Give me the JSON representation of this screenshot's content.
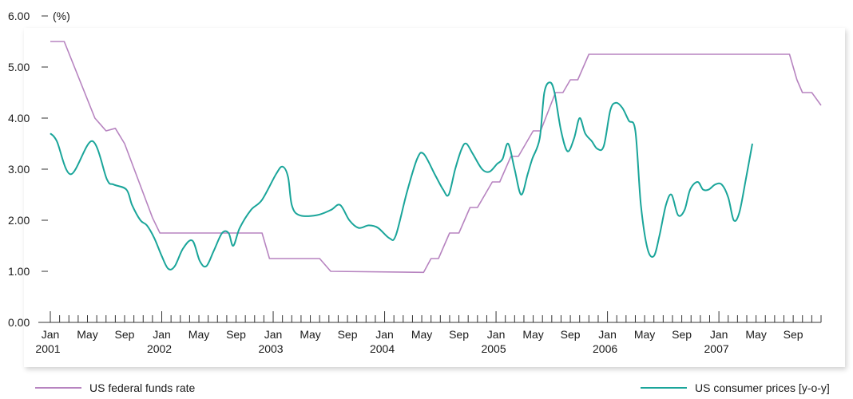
{
  "chart_data": {
    "type": "line",
    "unit_label": "(%)",
    "y_ticks": [
      "0.00",
      "1.00",
      "2.00",
      "3.00",
      "4.00",
      "5.00",
      "6.00"
    ],
    "ylim": [
      0,
      6
    ],
    "x_range": [
      0,
      83
    ],
    "x_tick_labels": [
      {
        "m": 0,
        "month": "Jan",
        "year": "2001"
      },
      {
        "m": 4,
        "month": "May",
        "year": ""
      },
      {
        "m": 8,
        "month": "Sep",
        "year": ""
      },
      {
        "m": 12,
        "month": "Jan",
        "year": "2002"
      },
      {
        "m": 16,
        "month": "May",
        "year": ""
      },
      {
        "m": 20,
        "month": "Sep",
        "year": ""
      },
      {
        "m": 24,
        "month": "Jan",
        "year": "2003"
      },
      {
        "m": 28,
        "month": "May",
        "year": ""
      },
      {
        "m": 32,
        "month": "Sep",
        "year": ""
      },
      {
        "m": 36,
        "month": "Jan",
        "year": "2004"
      },
      {
        "m": 40,
        "month": "May",
        "year": ""
      },
      {
        "m": 44,
        "month": "Sep",
        "year": ""
      },
      {
        "m": 48,
        "month": "Jan",
        "year": "2005"
      },
      {
        "m": 52,
        "month": "May",
        "year": ""
      },
      {
        "m": 56,
        "month": "Sep",
        "year": ""
      },
      {
        "m": 60,
        "month": "Jan",
        "year": "2006"
      },
      {
        "m": 64,
        "month": "May",
        "year": ""
      },
      {
        "m": 68,
        "month": "Sep",
        "year": ""
      },
      {
        "m": 72,
        "month": "Jan",
        "year": "2007"
      },
      {
        "m": 76,
        "month": "May",
        "year": ""
      },
      {
        "m": 80,
        "month": "Sep",
        "year": ""
      }
    ],
    "series": [
      {
        "name": "US federal funds rate",
        "color": "#b784c0",
        "points": [
          [
            0,
            5.5
          ],
          [
            1.5,
            5.5
          ],
          [
            4.8,
            4.0
          ],
          [
            6,
            3.75
          ],
          [
            7,
            3.8
          ],
          [
            8,
            3.5
          ],
          [
            11,
            2.05
          ],
          [
            11.8,
            1.75
          ],
          [
            22,
            1.75
          ],
          [
            22.8,
            1.75
          ],
          [
            23.6,
            1.25
          ],
          [
            29,
            1.25
          ],
          [
            30.2,
            1.0
          ],
          [
            40.2,
            0.98
          ],
          [
            41,
            1.25
          ],
          [
            41.8,
            1.25
          ],
          [
            43,
            1.75
          ],
          [
            44,
            1.75
          ],
          [
            45.2,
            2.25
          ],
          [
            46,
            2.25
          ],
          [
            47.6,
            2.75
          ],
          [
            48.4,
            2.75
          ],
          [
            49.6,
            3.25
          ],
          [
            50.4,
            3.25
          ],
          [
            52,
            3.75
          ],
          [
            52.8,
            3.75
          ],
          [
            54.4,
            4.5
          ],
          [
            55.2,
            4.5
          ],
          [
            56,
            4.75
          ],
          [
            56.8,
            4.75
          ],
          [
            58,
            5.25
          ],
          [
            79.6,
            5.25
          ],
          [
            80.4,
            4.75
          ],
          [
            81,
            4.5
          ],
          [
            82,
            4.5
          ],
          [
            83,
            4.25
          ]
        ]
      },
      {
        "name": "US consumer prices [y-o-y]",
        "color": "#1aa59a",
        "points": [
          [
            0,
            3.7
          ],
          [
            0.7,
            3.55
          ],
          [
            2.2,
            2.9
          ],
          [
            4.5,
            3.55
          ],
          [
            6.1,
            2.8
          ],
          [
            6.8,
            2.7
          ],
          [
            8.2,
            2.6
          ],
          [
            8.8,
            2.3
          ],
          [
            9.7,
            2.0
          ],
          [
            10.4,
            1.9
          ],
          [
            11.2,
            1.65
          ],
          [
            12,
            1.3
          ],
          [
            12.7,
            1.05
          ],
          [
            13.4,
            1.1
          ],
          [
            14.3,
            1.45
          ],
          [
            15.3,
            1.6
          ],
          [
            16.1,
            1.2
          ],
          [
            16.8,
            1.1
          ],
          [
            17.6,
            1.4
          ],
          [
            18.5,
            1.75
          ],
          [
            19.2,
            1.75
          ],
          [
            19.7,
            1.5
          ],
          [
            20.4,
            1.85
          ],
          [
            21.6,
            2.2
          ],
          [
            22.8,
            2.4
          ],
          [
            24.3,
            2.9
          ],
          [
            25,
            3.05
          ],
          [
            25.6,
            2.85
          ],
          [
            26,
            2.3
          ],
          [
            26.8,
            2.1
          ],
          [
            28.7,
            2.1
          ],
          [
            30.2,
            2.2
          ],
          [
            31.2,
            2.3
          ],
          [
            32.2,
            2.0
          ],
          [
            33.2,
            1.85
          ],
          [
            34.3,
            1.9
          ],
          [
            35.3,
            1.85
          ],
          [
            36.5,
            1.65
          ],
          [
            37.2,
            1.7
          ],
          [
            38.4,
            2.55
          ],
          [
            39.5,
            3.2
          ],
          [
            40.2,
            3.3
          ],
          [
            41.4,
            2.9
          ],
          [
            42.3,
            2.6
          ],
          [
            42.9,
            2.5
          ],
          [
            43.6,
            3.0
          ],
          [
            44.3,
            3.4
          ],
          [
            44.8,
            3.5
          ],
          [
            45.5,
            3.3
          ],
          [
            46.5,
            3.0
          ],
          [
            47.3,
            2.95
          ],
          [
            48.1,
            3.1
          ],
          [
            48.7,
            3.2
          ],
          [
            49.3,
            3.5
          ],
          [
            50,
            3.0
          ],
          [
            50.7,
            2.5
          ],
          [
            51.4,
            2.9
          ],
          [
            51.9,
            3.2
          ],
          [
            52.7,
            3.6
          ],
          [
            53.2,
            4.5
          ],
          [
            53.8,
            4.7
          ],
          [
            54.3,
            4.5
          ],
          [
            55,
            3.75
          ],
          [
            55.7,
            3.35
          ],
          [
            56.4,
            3.6
          ],
          [
            57,
            4.0
          ],
          [
            57.6,
            3.7
          ],
          [
            58.3,
            3.55
          ],
          [
            58.9,
            3.4
          ],
          [
            59.6,
            3.45
          ],
          [
            60.3,
            4.15
          ],
          [
            60.9,
            4.3
          ],
          [
            61.6,
            4.2
          ],
          [
            62.3,
            3.95
          ],
          [
            63,
            3.75
          ],
          [
            63.6,
            2.3
          ],
          [
            64.3,
            1.45
          ],
          [
            65,
            1.3
          ],
          [
            65.6,
            1.7
          ],
          [
            66.3,
            2.3
          ],
          [
            66.9,
            2.5
          ],
          [
            67.6,
            2.1
          ],
          [
            68.3,
            2.2
          ],
          [
            68.9,
            2.6
          ],
          [
            69.7,
            2.75
          ],
          [
            70.3,
            2.6
          ],
          [
            70.9,
            2.6
          ],
          [
            71.6,
            2.7
          ],
          [
            72.3,
            2.7
          ],
          [
            73,
            2.45
          ],
          [
            73.6,
            2.0
          ],
          [
            74.2,
            2.15
          ],
          [
            74.9,
            2.8
          ],
          [
            75.6,
            3.5
          ]
        ]
      }
    ]
  }
}
